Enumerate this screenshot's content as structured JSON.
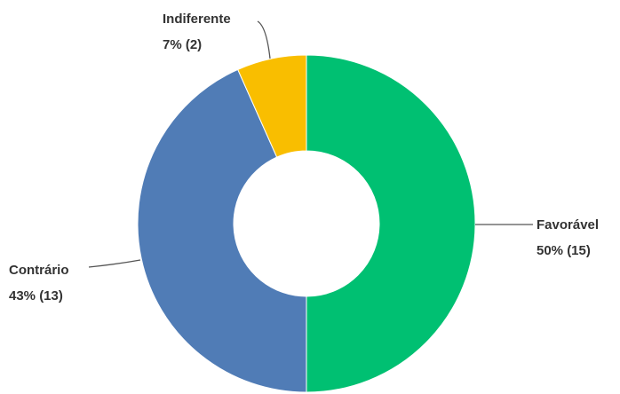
{
  "chart_data": {
    "type": "donut",
    "categories": [
      "Favorável",
      "Contrário",
      "Indiferente"
    ],
    "values": [
      15,
      13,
      2
    ],
    "value_labels": [
      "50% (15)",
      "43% (13)",
      "7% (2)"
    ],
    "colors": [
      "#00c072",
      "#507cb6",
      "#f9be00"
    ]
  }
}
